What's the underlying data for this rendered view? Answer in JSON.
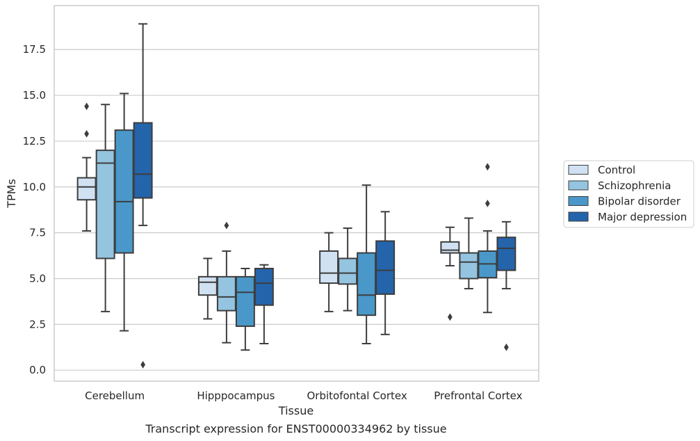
{
  "chart_data": {
    "type": "box",
    "title": "Transcript expression for ENST00000334962 by tissue",
    "xlabel": "Tissue",
    "ylabel": "TPMs",
    "ylim": [
      -0.6,
      19.9
    ],
    "yticks": [
      0.0,
      2.5,
      5.0,
      7.5,
      10.0,
      12.5,
      15.0,
      17.5
    ],
    "ytick_labels": [
      "0.0",
      "2.5",
      "5.0",
      "7.5",
      "10.0",
      "12.5",
      "15.0",
      "17.5"
    ],
    "grid": "horizontal",
    "legend_placement": "right",
    "categories": [
      "Cerebellum",
      "Hipppocampus",
      "Orbitofontal Cortex",
      "Prefrontal Cortex"
    ],
    "series": [
      {
        "name": "Control",
        "color": "#d0e1f2",
        "boxes": [
          {
            "whislo": 7.6,
            "q1": 9.3,
            "med": 10.0,
            "q3": 10.5,
            "whishi": 11.6,
            "fliers": [
              12.9,
              14.4
            ]
          },
          {
            "whislo": 2.8,
            "q1": 4.1,
            "med": 4.8,
            "q3": 5.1,
            "whishi": 6.1,
            "fliers": []
          },
          {
            "whislo": 3.2,
            "q1": 4.75,
            "med": 5.3,
            "q3": 6.5,
            "whishi": 7.5,
            "fliers": []
          },
          {
            "whislo": 5.7,
            "q1": 6.4,
            "med": 6.55,
            "q3": 7.0,
            "whishi": 7.8,
            "fliers": [
              2.9
            ]
          }
        ]
      },
      {
        "name": "Schizophrenia",
        "color": "#94c4df",
        "boxes": [
          {
            "whislo": 3.2,
            "q1": 6.1,
            "med": 11.3,
            "q3": 12.0,
            "whishi": 14.5,
            "fliers": []
          },
          {
            "whislo": 1.5,
            "q1": 3.25,
            "med": 4.0,
            "q3": 5.1,
            "whishi": 6.5,
            "fliers": [
              7.9
            ]
          },
          {
            "whislo": 3.25,
            "q1": 4.7,
            "med": 5.3,
            "q3": 6.1,
            "whishi": 7.75,
            "fliers": []
          },
          {
            "whislo": 4.45,
            "q1": 5.0,
            "med": 5.9,
            "q3": 6.4,
            "whishi": 8.3,
            "fliers": []
          }
        ]
      },
      {
        "name": "Bipolar disorder",
        "color": "#4a98c9",
        "boxes": [
          {
            "whislo": 2.15,
            "q1": 6.4,
            "med": 9.2,
            "q3": 13.1,
            "whishi": 15.1,
            "fliers": []
          },
          {
            "whislo": 1.1,
            "q1": 2.4,
            "med": 4.25,
            "q3": 5.1,
            "whishi": 5.55,
            "fliers": []
          },
          {
            "whislo": 1.45,
            "q1": 3.0,
            "med": 4.1,
            "q3": 6.4,
            "whishi": 10.1,
            "fliers": []
          },
          {
            "whislo": 3.15,
            "q1": 5.05,
            "med": 5.8,
            "q3": 6.5,
            "whishi": 7.6,
            "fliers": [
              9.1,
              11.1
            ]
          }
        ]
      },
      {
        "name": "Major depression",
        "color": "#2464ab",
        "boxes": [
          {
            "whislo": 7.9,
            "q1": 9.4,
            "med": 10.7,
            "q3": 13.5,
            "whishi": 18.9,
            "fliers": [
              0.3
            ]
          },
          {
            "whislo": 1.45,
            "q1": 3.55,
            "med": 4.75,
            "q3": 5.55,
            "whishi": 5.75,
            "fliers": []
          },
          {
            "whislo": 1.95,
            "q1": 4.15,
            "med": 5.45,
            "q3": 7.05,
            "whishi": 8.65,
            "fliers": []
          },
          {
            "whislo": 4.45,
            "q1": 5.45,
            "med": 6.65,
            "q3": 7.25,
            "whishi": 8.1,
            "fliers": [
              1.25
            ]
          }
        ]
      }
    ]
  }
}
